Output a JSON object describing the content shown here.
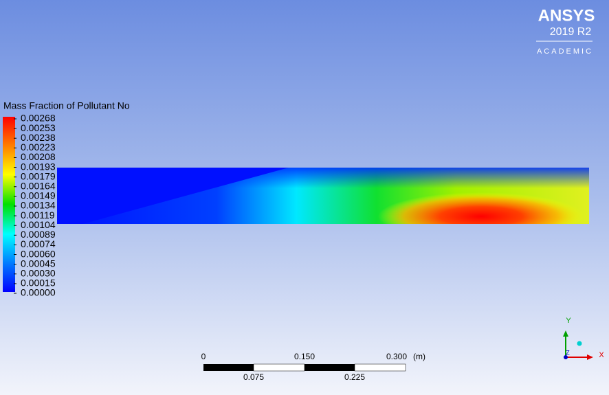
{
  "logo": {
    "brand": "ANSYS",
    "version": "2019 R2",
    "edition": "ACADEMIC"
  },
  "legend": {
    "title": "Mass Fraction of Pollutant No",
    "labels": [
      "0.00268",
      "0.00253",
      "0.00238",
      "0.00223",
      "0.00208",
      "0.00193",
      "0.00179",
      "0.00164",
      "0.00149",
      "0.00134",
      "0.00119",
      "0.00104",
      "0.00089",
      "0.00074",
      "0.00060",
      "0.00045",
      "0.00030",
      "0.00015",
      "0.00000"
    ]
  },
  "scale_bar": {
    "top_labels": [
      "0",
      "0.150",
      "0.300"
    ],
    "unit": "(m)",
    "bottom_labels": [
      "0.075",
      "0.225"
    ]
  },
  "triad": {
    "x": "X",
    "y": "Y",
    "z": "Z"
  }
}
